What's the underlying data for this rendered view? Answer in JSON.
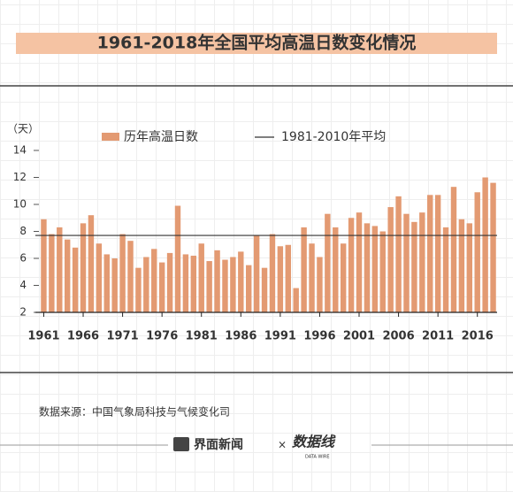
{
  "chart_data": {
    "type": "bar",
    "title": "1961-2018年全国平均高温日数变化情况",
    "y_unit_label": "（天）",
    "categories": [
      "1961",
      null,
      null,
      null,
      null,
      "1966",
      null,
      null,
      null,
      null,
      "1971",
      null,
      null,
      null,
      null,
      "1976",
      null,
      null,
      null,
      null,
      "1981",
      null,
      null,
      null,
      null,
      "1986",
      null,
      null,
      null,
      null,
      "1991",
      null,
      null,
      null,
      null,
      "1996",
      null,
      null,
      null,
      null,
      "2001",
      null,
      null,
      null,
      null,
      "2006",
      null,
      null,
      null,
      null,
      "2011",
      null,
      null,
      null,
      null,
      "2016",
      null,
      null
    ],
    "series": [
      {
        "name": "历年高温日数",
        "color": "#e39a72",
        "values": [
          8.9,
          7.8,
          8.3,
          7.4,
          6.8,
          8.6,
          9.2,
          7.1,
          6.3,
          6.0,
          7.8,
          7.3,
          5.3,
          6.1,
          6.7,
          5.7,
          6.4,
          9.9,
          6.3,
          6.2,
          7.1,
          5.8,
          6.6,
          5.9,
          6.1,
          6.5,
          5.5,
          7.7,
          5.3,
          7.8,
          6.9,
          7.0,
          3.8,
          8.3,
          7.1,
          6.1,
          9.3,
          8.3,
          7.1,
          9.0,
          9.4,
          8.6,
          8.4,
          8.0,
          9.8,
          10.6,
          9.3,
          8.7,
          9.4,
          10.7,
          10.7,
          8.3,
          11.3,
          8.9,
          8.6,
          10.9,
          12.0,
          11.6
        ]
      }
    ],
    "reference_line": {
      "name": "1981-2010年平均",
      "value": 7.7,
      "color": "#333333"
    },
    "ylim": [
      2,
      14
    ],
    "yticks": [
      2,
      4,
      6,
      8,
      10,
      12,
      14
    ],
    "source": "数据来源：中国气象局科技与气候变化司",
    "footer": {
      "brand": "界面新闻",
      "separator": "×",
      "partner": "数据线",
      "partner_en": "DATA WIRE"
    }
  }
}
